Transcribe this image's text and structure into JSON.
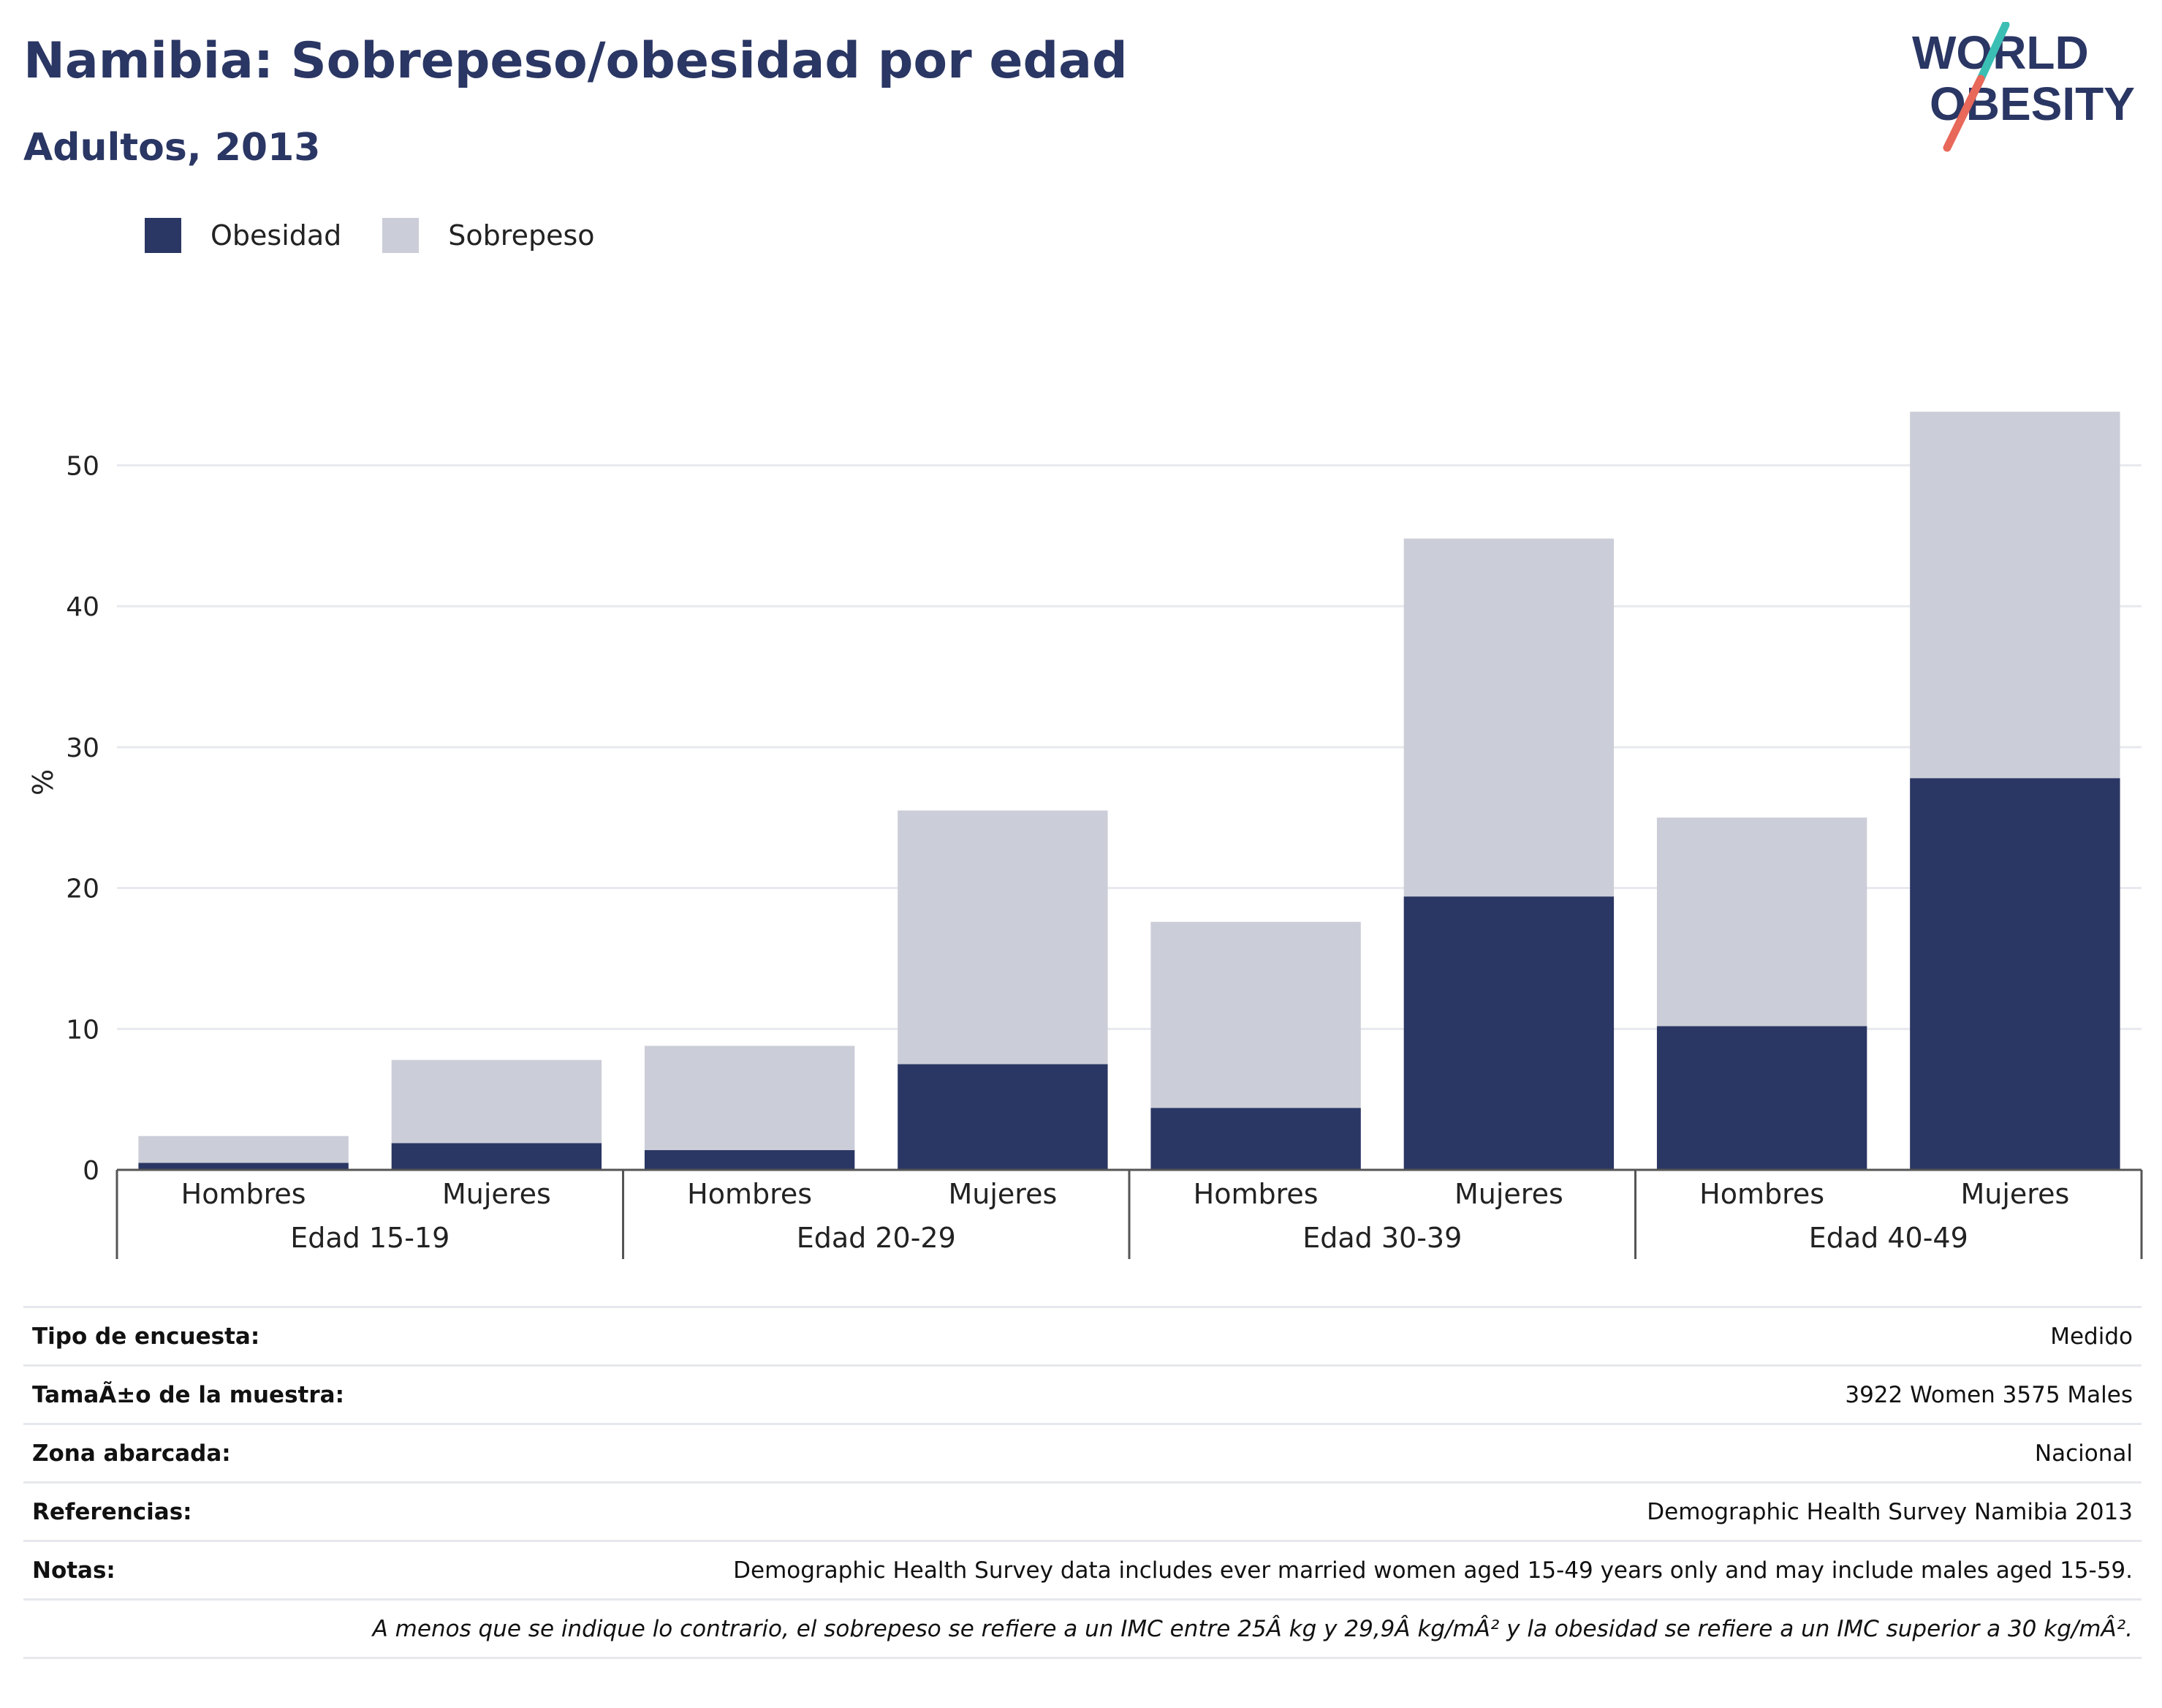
{
  "header": {
    "title": "Namibia: Sobrepeso/obesidad por edad",
    "subtitle": "Adultos, 2013"
  },
  "logo": {
    "line1": "WORLD",
    "line2": "OBESITY",
    "accent_teal": "#3bbfb4",
    "accent_coral": "#e8685a",
    "text_color": "#2a3663"
  },
  "colors": {
    "obesidad": "#2a3663",
    "sobrepeso": "#cbcdd8",
    "title": "#2a3663",
    "grid": "#e8e9ee",
    "axis": "#555555"
  },
  "legend": {
    "obesidad_label": "Obesidad",
    "sobrepeso_label": "Sobrepeso"
  },
  "chart_data": {
    "type": "bar",
    "stacked": true,
    "ylabel": "%",
    "ylim": [
      0,
      55
    ],
    "yticks": [
      0,
      10,
      20,
      30,
      40,
      50
    ],
    "grid": true,
    "legend_position": "top-left",
    "groups": [
      "Edad 15-19",
      "Edad 20-29",
      "Edad 30-39",
      "Edad 40-49"
    ],
    "categories": [
      "Hombres",
      "Mujeres",
      "Hombres",
      "Mujeres",
      "Hombres",
      "Mujeres",
      "Hombres",
      "Mujeres"
    ],
    "series": [
      {
        "name": "Obesidad",
        "values": [
          0.5,
          1.9,
          1.4,
          7.5,
          4.4,
          19.4,
          10.2,
          27.8
        ]
      },
      {
        "name": "Sobrepeso",
        "values": [
          1.9,
          5.9,
          7.4,
          18.0,
          13.2,
          25.4,
          14.8,
          26.0
        ]
      }
    ]
  },
  "info": {
    "survey_type_label": "Tipo de encuesta:",
    "survey_type_value": "Medido",
    "sample_size_label": "TamaÃ±o de la muestra:",
    "sample_size_value": "3922 Women 3575 Males",
    "area_label": "Zona abarcada:",
    "area_value": "Nacional",
    "references_label": "Referencias:",
    "references_value": "Demographic Health Survey Namibia 2013",
    "notes_label": "Notas:",
    "notes_value": "Demographic Health Survey data includes ever married women aged 15-49 years only and may include males aged 15-59.",
    "definition_note": "A menos que se indique lo contrario, el sobrepeso se refiere a un IMC entre 25Â kg y 29,9Â kg/mÂ² y la obesidad se refiere a un IMC superior a 30 kg/mÂ²."
  }
}
